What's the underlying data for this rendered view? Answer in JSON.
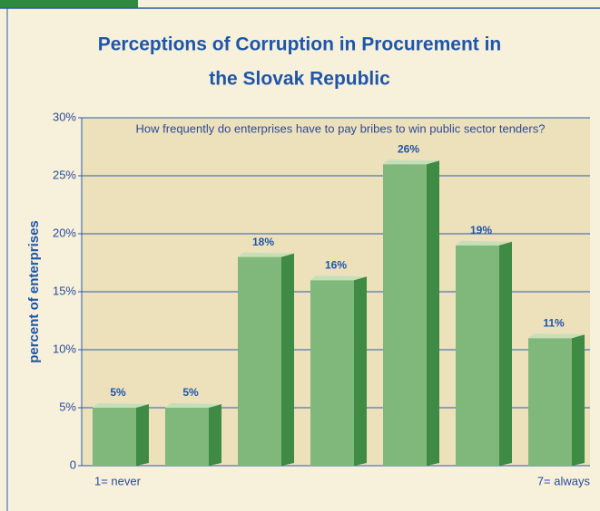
{
  "chart_data": {
    "type": "bar",
    "title": "Perceptions of Corruption in Procurement in",
    "title_line2": "the Slovak Republic",
    "annotation": "How frequently do enterprises have to pay bribes to win public sector tenders?",
    "ylabel": "percent of enterprises",
    "categories": [
      "1= never",
      null,
      null,
      null,
      null,
      null,
      "7= always"
    ],
    "values": [
      5,
      5,
      18,
      16,
      26,
      19,
      11
    ],
    "value_labels": [
      "5%",
      "5%",
      "18%",
      "16%",
      "26%",
      "19%",
      "11%"
    ],
    "color": "#7fb87a",
    "ylim": [
      0,
      30
    ],
    "yticks": [
      0,
      {
        "value": 5,
        "label": "5%"
      },
      {
        "value": 10,
        "label": "10%"
      },
      {
        "value": 15,
        "label": "15%"
      },
      {
        "value": 20,
        "label": "20%"
      },
      {
        "value": 25,
        "label": "25%"
      },
      {
        "value": 30,
        "label": "30%"
      }
    ],
    "grid": true
  }
}
